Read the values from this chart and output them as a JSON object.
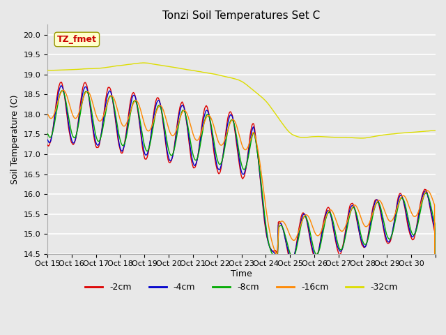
{
  "title": "Tonzi Soil Temperatures Set C",
  "xlabel": "Time",
  "ylabel": "Soil Temperature (C)",
  "ylim": [
    14.5,
    20.25
  ],
  "plot_bg": "#e8e8e8",
  "fig_bg": "#e8e8e8",
  "annotation_text": "TZ_fmet",
  "annotation_color": "#cc0000",
  "annotation_bg": "#ffffcc",
  "colors_2cm": "#dd0000",
  "colors_4cm": "#0000cc",
  "colors_8cm": "#00aa00",
  "colors_16cm": "#ff8800",
  "colors_32cm": "#dddd00",
  "legend_colors": [
    "#dd0000",
    "#0000cc",
    "#00aa00",
    "#ff8800",
    "#dddd00"
  ],
  "legend_labels": [
    "-2cm",
    "-4cm",
    "-8cm",
    "-16cm",
    "-32cm"
  ],
  "grid_color": "#ffffff",
  "linewidth": 1.0
}
